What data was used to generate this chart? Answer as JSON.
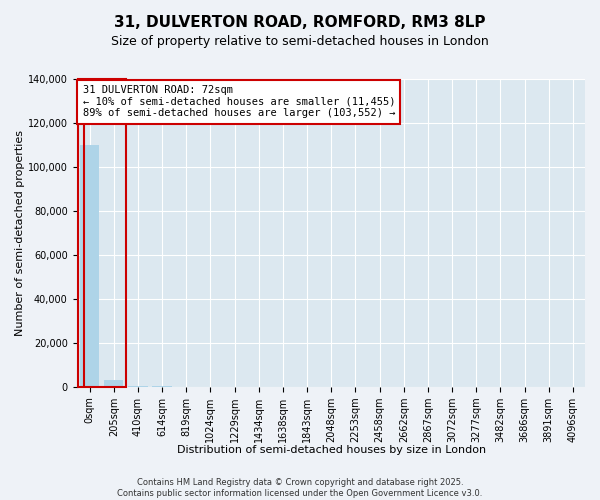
{
  "title": "31, DULVERTON ROAD, ROMFORD, RM3 8LP",
  "subtitle": "Size of property relative to semi-detached houses in London",
  "xlabel": "Distribution of semi-detached houses by size in London",
  "ylabel": "Number of semi-detached properties",
  "footer1": "Contains HM Land Registry data © Crown copyright and database right 2025.",
  "footer2": "Contains public sector information licensed under the Open Government Licence v3.0.",
  "annotation_title": "31 DULVERTON ROAD: 72sqm",
  "annotation_line2": "← 10% of semi-detached houses are smaller (11,455)",
  "annotation_line3": "89% of semi-detached houses are larger (103,552) →",
  "x_labels": [
    "0sqm",
    "205sqm",
    "410sqm",
    "614sqm",
    "819sqm",
    "1024sqm",
    "1229sqm",
    "1434sqm",
    "1638sqm",
    "1843sqm",
    "2048sqm",
    "2253sqm",
    "2458sqm",
    "2662sqm",
    "2867sqm",
    "3072sqm",
    "3277sqm",
    "3482sqm",
    "3686sqm",
    "3891sqm",
    "4096sqm"
  ],
  "bar_values": [
    110000,
    3000,
    500,
    200,
    100,
    50,
    30,
    20,
    15,
    10,
    8,
    6,
    5,
    4,
    3,
    3,
    2,
    2,
    2,
    2,
    1
  ],
  "bar_color": "#aed4e8",
  "highlight_color": "#cc0000",
  "ylim": [
    0,
    140000
  ],
  "yticks": [
    0,
    20000,
    40000,
    60000,
    80000,
    100000,
    120000,
    140000
  ],
  "bg_color": "#eef2f7",
  "plot_bg_color": "#dce8f0",
  "grid_color": "#ffffff",
  "title_fontsize": 11,
  "subtitle_fontsize": 9,
  "axis_label_fontsize": 8,
  "tick_fontsize": 7,
  "annotation_fontsize": 7.5
}
